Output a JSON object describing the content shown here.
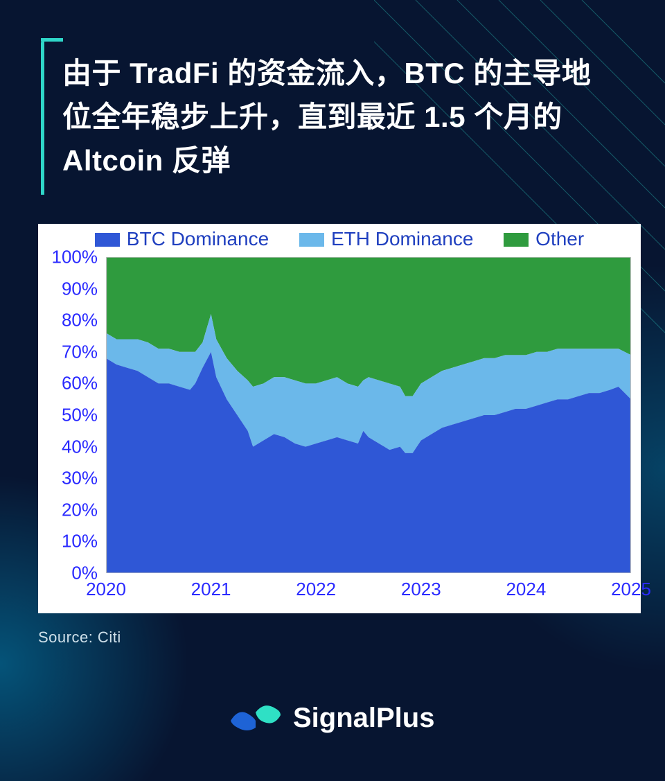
{
  "background_color": "#071531",
  "accent_color": "#2fd7c9",
  "title": "由于 TradFi 的资金流入，BTC 的主导地位全年稳步上升，直到最近 1.5 个月的 Altcoin 反弹",
  "title_fontsize": 42,
  "title_color": "#ffffff",
  "source_label": "Source: Citi",
  "source_color": "#cfe0ea",
  "brand_name": "SignalPlus",
  "brand_logo_colors": {
    "left": "#1e63d6",
    "right": "#2fe0c5"
  },
  "chart": {
    "type": "stacked-area",
    "background_color": "#ffffff",
    "axis_label_color": "#2a2aff",
    "grid_color": "#bfbfbf",
    "label_fontsize": 26,
    "legend_fontsize": 28,
    "legend": [
      {
        "label": "BTC Dominance",
        "color": "#2f57d6"
      },
      {
        "label": "ETH Dominance",
        "color": "#6bb8ea"
      },
      {
        "label": "Other",
        "color": "#2f9b3e"
      }
    ],
    "x_ticks": [
      2020,
      2021,
      2022,
      2023,
      2024,
      2025
    ],
    "xlim": [
      2020,
      2025
    ],
    "y_ticks": [
      0,
      10,
      20,
      30,
      40,
      50,
      60,
      70,
      80,
      90,
      100
    ],
    "ylim": [
      0,
      100
    ],
    "y_tick_suffix": "%",
    "series_x": [
      2020,
      2020.1,
      2020.2,
      2020.3,
      2020.4,
      2020.5,
      2020.6,
      2020.7,
      2020.8,
      2020.85,
      2020.92,
      2021,
      2021.05,
      2021.15,
      2021.25,
      2021.35,
      2021.4,
      2021.5,
      2021.6,
      2021.7,
      2021.8,
      2021.9,
      2022,
      2022.1,
      2022.2,
      2022.3,
      2022.4,
      2022.45,
      2022.5,
      2022.6,
      2022.7,
      2022.8,
      2022.85,
      2022.92,
      2023,
      2023.1,
      2023.2,
      2023.3,
      2023.4,
      2023.5,
      2023.6,
      2023.7,
      2023.8,
      2023.9,
      2024,
      2024.1,
      2024.2,
      2024.3,
      2024.4,
      2024.5,
      2024.6,
      2024.7,
      2024.8,
      2024.88,
      2024.94,
      2025
    ],
    "btc": [
      68,
      66,
      65,
      64,
      62,
      60,
      60,
      59,
      58,
      60,
      65,
      70,
      62,
      55,
      50,
      45,
      40,
      42,
      44,
      43,
      41,
      40,
      41,
      42,
      43,
      42,
      41,
      45,
      43,
      41,
      39,
      40,
      38,
      38,
      42,
      44,
      46,
      47,
      48,
      49,
      50,
      50,
      51,
      52,
      52,
      53,
      54,
      55,
      55,
      56,
      57,
      57,
      58,
      59,
      57,
      55
    ],
    "eth": [
      8,
      8,
      9,
      10,
      11,
      11,
      11,
      11,
      12,
      10,
      8,
      12,
      12,
      13,
      14,
      16,
      19,
      18,
      18,
      19,
      20,
      20,
      19,
      19,
      19,
      18,
      18,
      16,
      19,
      20,
      21,
      19,
      18,
      18,
      18,
      18,
      18,
      18,
      18,
      18,
      18,
      18,
      18,
      17,
      17,
      17,
      16,
      16,
      16,
      15,
      14,
      14,
      13,
      12,
      13,
      14
    ]
  }
}
